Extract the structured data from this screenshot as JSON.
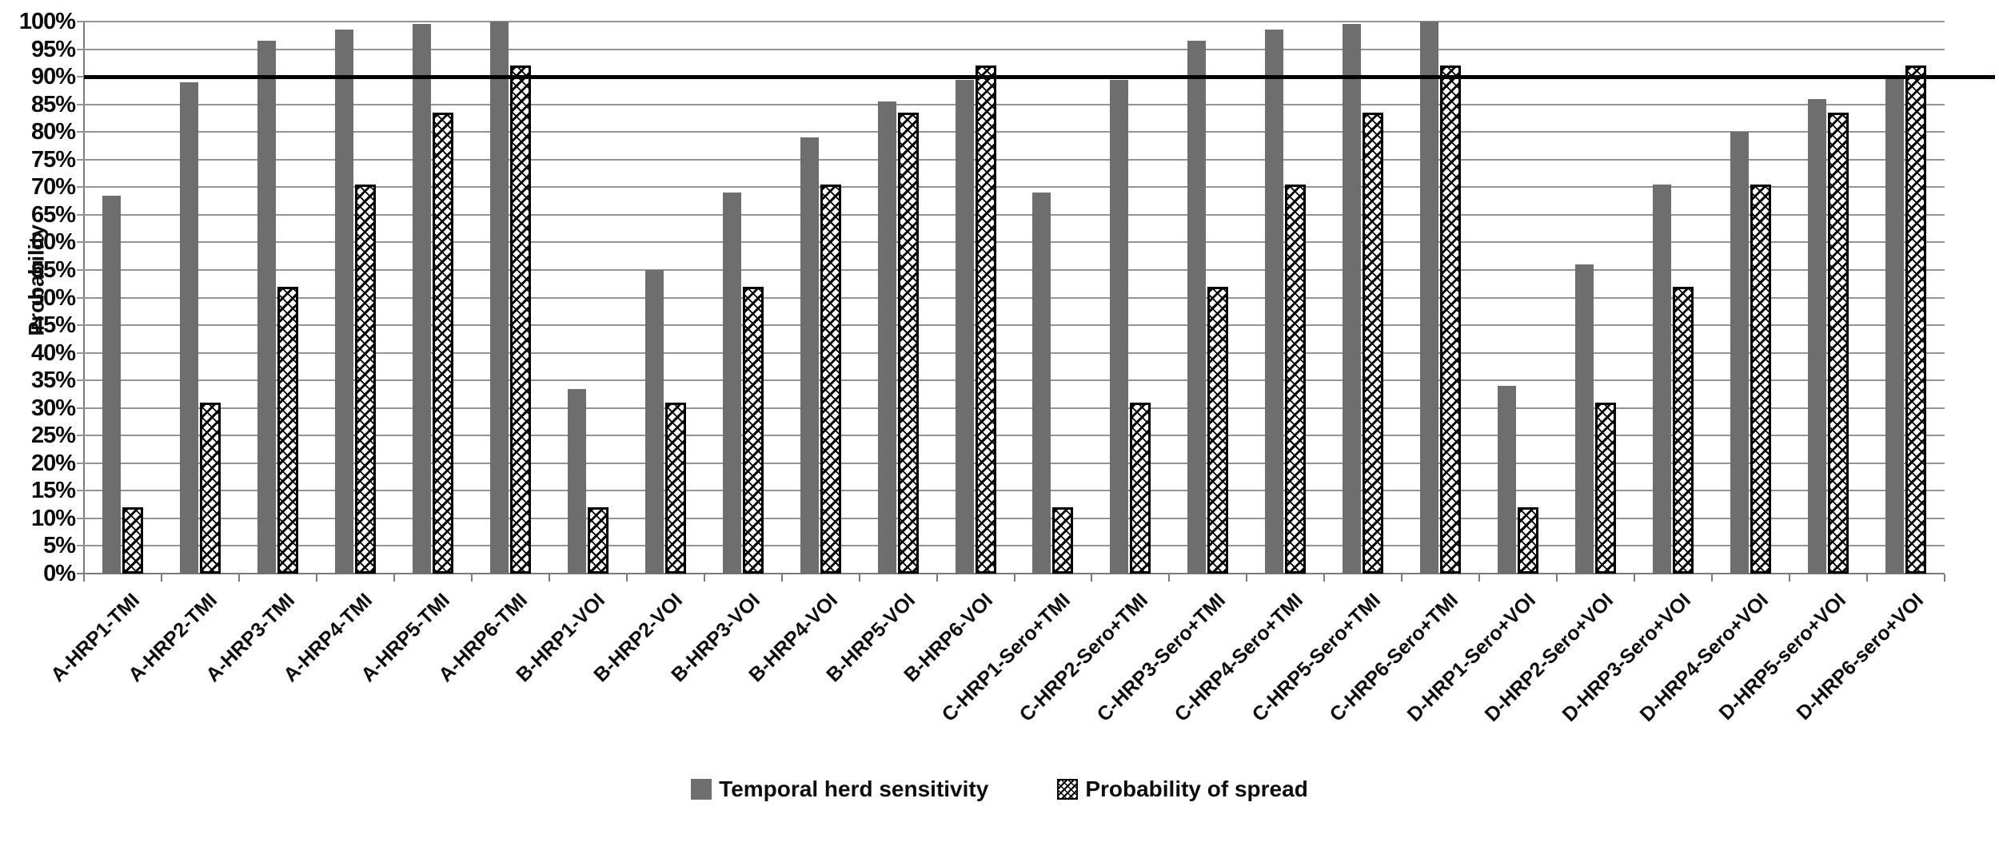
{
  "chart_data": {
    "type": "bar",
    "title": "",
    "xlabel": "",
    "ylabel": "Probability",
    "ylim": [
      0,
      100
    ],
    "ytick_step": 5,
    "yticks": [
      "0%",
      "5%",
      "10%",
      "15%",
      "20%",
      "25%",
      "30%",
      "35%",
      "40%",
      "45%",
      "50%",
      "55%",
      "60%",
      "65%",
      "70%",
      "75%",
      "80%",
      "85%",
      "90%",
      "95%",
      "100%"
    ],
    "grid": true,
    "legend_position": "bottom",
    "reference_line": {
      "value": 90
    },
    "categories": [
      "A-HRP1-TMI",
      "A-HRP2-TMI",
      "A-HRP3-TMI",
      "A-HRP4-TMI",
      "A-HRP5-TMI",
      "A-HRP6-TMI",
      "B-HRP1-VOI",
      "B-HRP2-VOI",
      "B-HRP3-VOI",
      "B-HRP4-VOI",
      "B-HRP5-VOI",
      "B-HRP6-VOI",
      "C-HRP1-Sero+TMI",
      "C-HRP2-Sero+TMI",
      "C-HRP3-Sero+TMI",
      "C-HRP4-Sero+TMI",
      "C-HRP5-Sero+TMI",
      "C-HRP6-Sero+TMI",
      "D-HRP1-Sero+VOI",
      "D-HRP2-Sero+VOI",
      "D-HRP3-Sero+VOI",
      "D-HRP4-Sero+VOI",
      "D-HRP5-sero+VOI",
      "D-HRP6-sero+VOI"
    ],
    "series": [
      {
        "name": "Temporal herd sensitivity",
        "pattern": "solid",
        "values": [
          68.5,
          89,
          96.5,
          98.5,
          99.5,
          100,
          33.5,
          55,
          69,
          79,
          85.5,
          89.5,
          69,
          89.5,
          96.5,
          98.5,
          99.5,
          100,
          34,
          56,
          70.5,
          80,
          86,
          90
        ]
      },
      {
        "name": "Probability of spread",
        "pattern": "diagonal-crosshatch",
        "values": [
          12,
          31,
          52,
          70.5,
          83.5,
          92,
          12,
          31,
          52,
          70.5,
          83.5,
          92,
          12,
          31,
          52,
          70.5,
          83.5,
          92,
          12,
          31,
          52,
          70.5,
          83.5,
          92
        ]
      }
    ]
  },
  "colors": {
    "bar_solid": "#6e6e6e",
    "hatch_stroke": "#000000",
    "gridline": "#949494",
    "axis": "#7a7a7a",
    "reference_line": "#000000",
    "text": "#0d0d0d",
    "background": "#ffffff"
  }
}
